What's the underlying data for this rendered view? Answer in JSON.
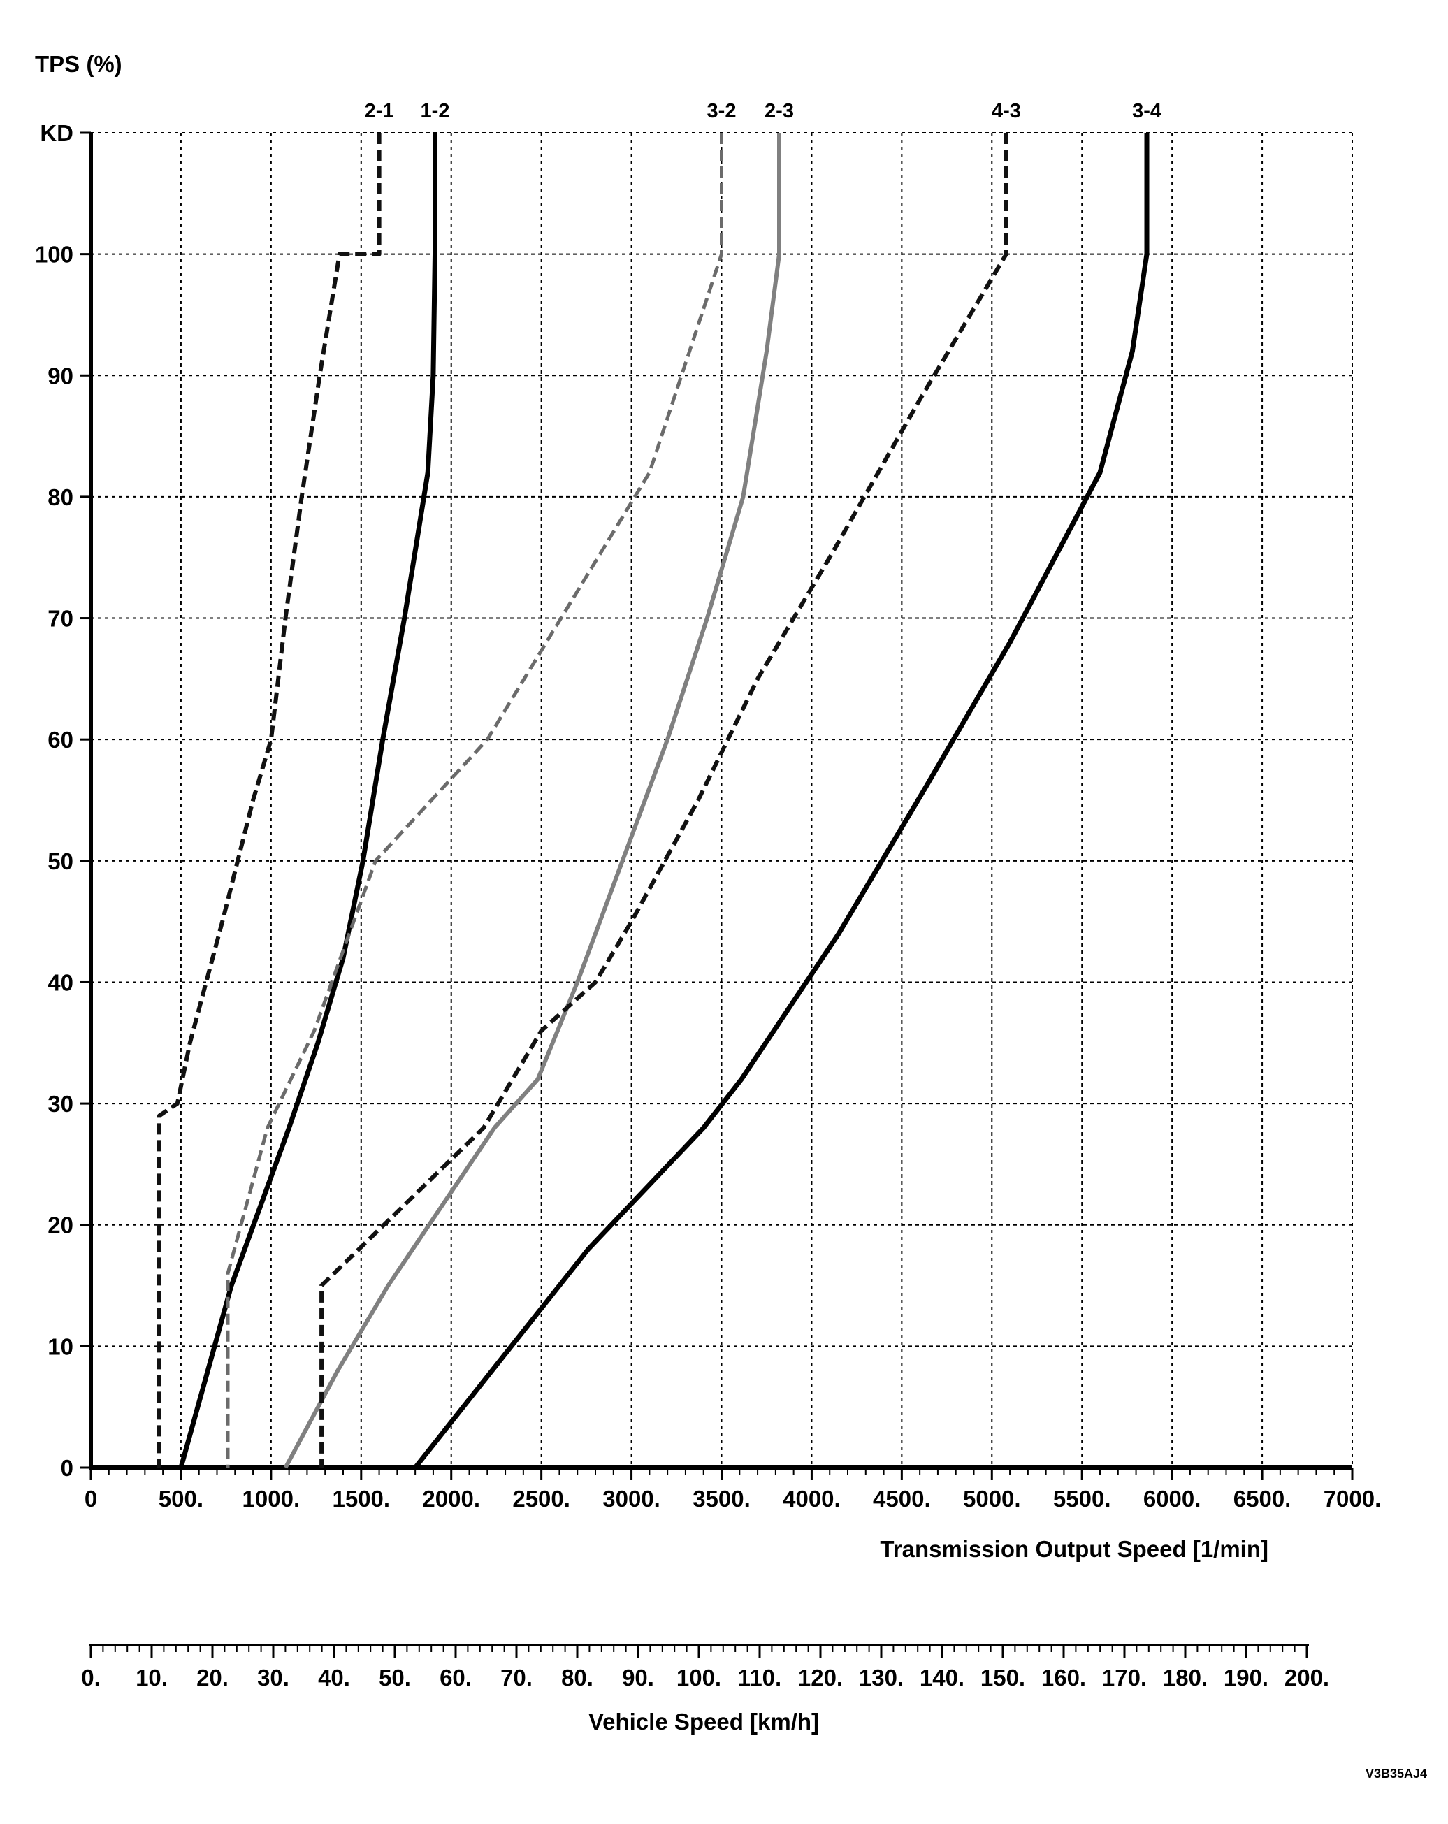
{
  "chart_data": {
    "type": "line",
    "ylabel": "TPS (%)",
    "xlabel": "Transmission Output Speed [1/min]",
    "xlim": [
      0,
      7000
    ],
    "ylim": [
      0,
      110
    ],
    "grid": true,
    "x_ticks": [
      "0",
      "500.",
      "1000.",
      "1500.",
      "2000.",
      "2500.",
      "3000.",
      "3500.",
      "4000.",
      "4500.",
      "5000.",
      "5500.",
      "6000.",
      "6500.",
      "7000."
    ],
    "y_ticks": [
      {
        "value": 0,
        "label": "0"
      },
      {
        "value": 10,
        "label": "10"
      },
      {
        "value": 20,
        "label": "20"
      },
      {
        "value": 30,
        "label": "30"
      },
      {
        "value": 40,
        "label": "40"
      },
      {
        "value": 50,
        "label": "50"
      },
      {
        "value": 60,
        "label": "60"
      },
      {
        "value": 70,
        "label": "70"
      },
      {
        "value": 80,
        "label": "80"
      },
      {
        "value": 90,
        "label": "90"
      },
      {
        "value": 100,
        "label": "100"
      },
      {
        "value": 110,
        "label": "KD"
      }
    ],
    "secondary_x_axis": {
      "label": "Vehicle Speed [km/h]",
      "ticks": [
        "0.",
        "10.",
        "20.",
        "30.",
        "40.",
        "50.",
        "60.",
        "70.",
        "80.",
        "90.",
        "100.",
        "110.",
        "120.",
        "130.",
        "140.",
        "150.",
        "160.",
        "170.",
        "180.",
        "190.",
        "200."
      ]
    },
    "series": [
      {
        "name": "2-1",
        "style": "dashed",
        "color": "#111111",
        "width": 6,
        "points": [
          [
            1600,
            110
          ],
          [
            1600,
            100
          ],
          [
            1380,
            100
          ],
          [
            1270,
            90
          ],
          [
            1170,
            80
          ],
          [
            1080,
            70
          ],
          [
            1000,
            60
          ],
          [
            900,
            55
          ],
          [
            730,
            45
          ],
          [
            550,
            35
          ],
          [
            480,
            30
          ],
          [
            380,
            29
          ],
          [
            380,
            0
          ]
        ]
      },
      {
        "name": "1-2",
        "style": "solid",
        "color": "#000000",
        "width": 7,
        "points": [
          [
            1910,
            110
          ],
          [
            1910,
            100
          ],
          [
            1900,
            90
          ],
          [
            1870,
            82
          ],
          [
            1740,
            70
          ],
          [
            1620,
            60
          ],
          [
            1510,
            50
          ],
          [
            1400,
            42
          ],
          [
            1260,
            35
          ],
          [
            1100,
            28
          ],
          [
            780,
            15
          ],
          [
            500,
            0
          ]
        ]
      },
      {
        "name": "3-2",
        "style": "dashed",
        "color": "#6b6b6b",
        "width": 5,
        "points": [
          [
            3500,
            110
          ],
          [
            3500,
            100
          ],
          [
            3100,
            82
          ],
          [
            2200,
            60
          ],
          [
            1580,
            50
          ],
          [
            1240,
            36
          ],
          [
            980,
            28
          ],
          [
            760,
            16
          ],
          [
            760,
            0
          ]
        ]
      },
      {
        "name": "2-3",
        "style": "solid",
        "color": "#808080",
        "width": 6,
        "points": [
          [
            3820,
            110
          ],
          [
            3820,
            100
          ],
          [
            3750,
            92
          ],
          [
            3620,
            80
          ],
          [
            3420,
            70
          ],
          [
            3200,
            60
          ],
          [
            2950,
            50
          ],
          [
            2700,
            40
          ],
          [
            2480,
            32
          ],
          [
            2240,
            28
          ],
          [
            1650,
            15
          ],
          [
            1370,
            8
          ],
          [
            1080,
            0
          ]
        ]
      },
      {
        "name": "4-3",
        "style": "dashed",
        "color": "#111111",
        "width": 6,
        "points": [
          [
            5080,
            110
          ],
          [
            5080,
            100
          ],
          [
            4600,
            88
          ],
          [
            4100,
            75
          ],
          [
            3700,
            65
          ],
          [
            3370,
            55
          ],
          [
            3000,
            45
          ],
          [
            2800,
            40
          ],
          [
            2500,
            36
          ],
          [
            2180,
            28
          ],
          [
            1280,
            15
          ],
          [
            1280,
            0
          ]
        ]
      },
      {
        "name": "3-4",
        "style": "solid",
        "color": "#000000",
        "width": 7,
        "points": [
          [
            5860,
            110
          ],
          [
            5860,
            100
          ],
          [
            5780,
            92
          ],
          [
            5600,
            82
          ],
          [
            5100,
            68
          ],
          [
            4630,
            56
          ],
          [
            4150,
            44
          ],
          [
            3610,
            32
          ],
          [
            3400,
            28
          ],
          [
            2760,
            18
          ],
          [
            1800,
            0
          ]
        ]
      }
    ],
    "annotations": [
      "V3B35AJ4"
    ]
  }
}
